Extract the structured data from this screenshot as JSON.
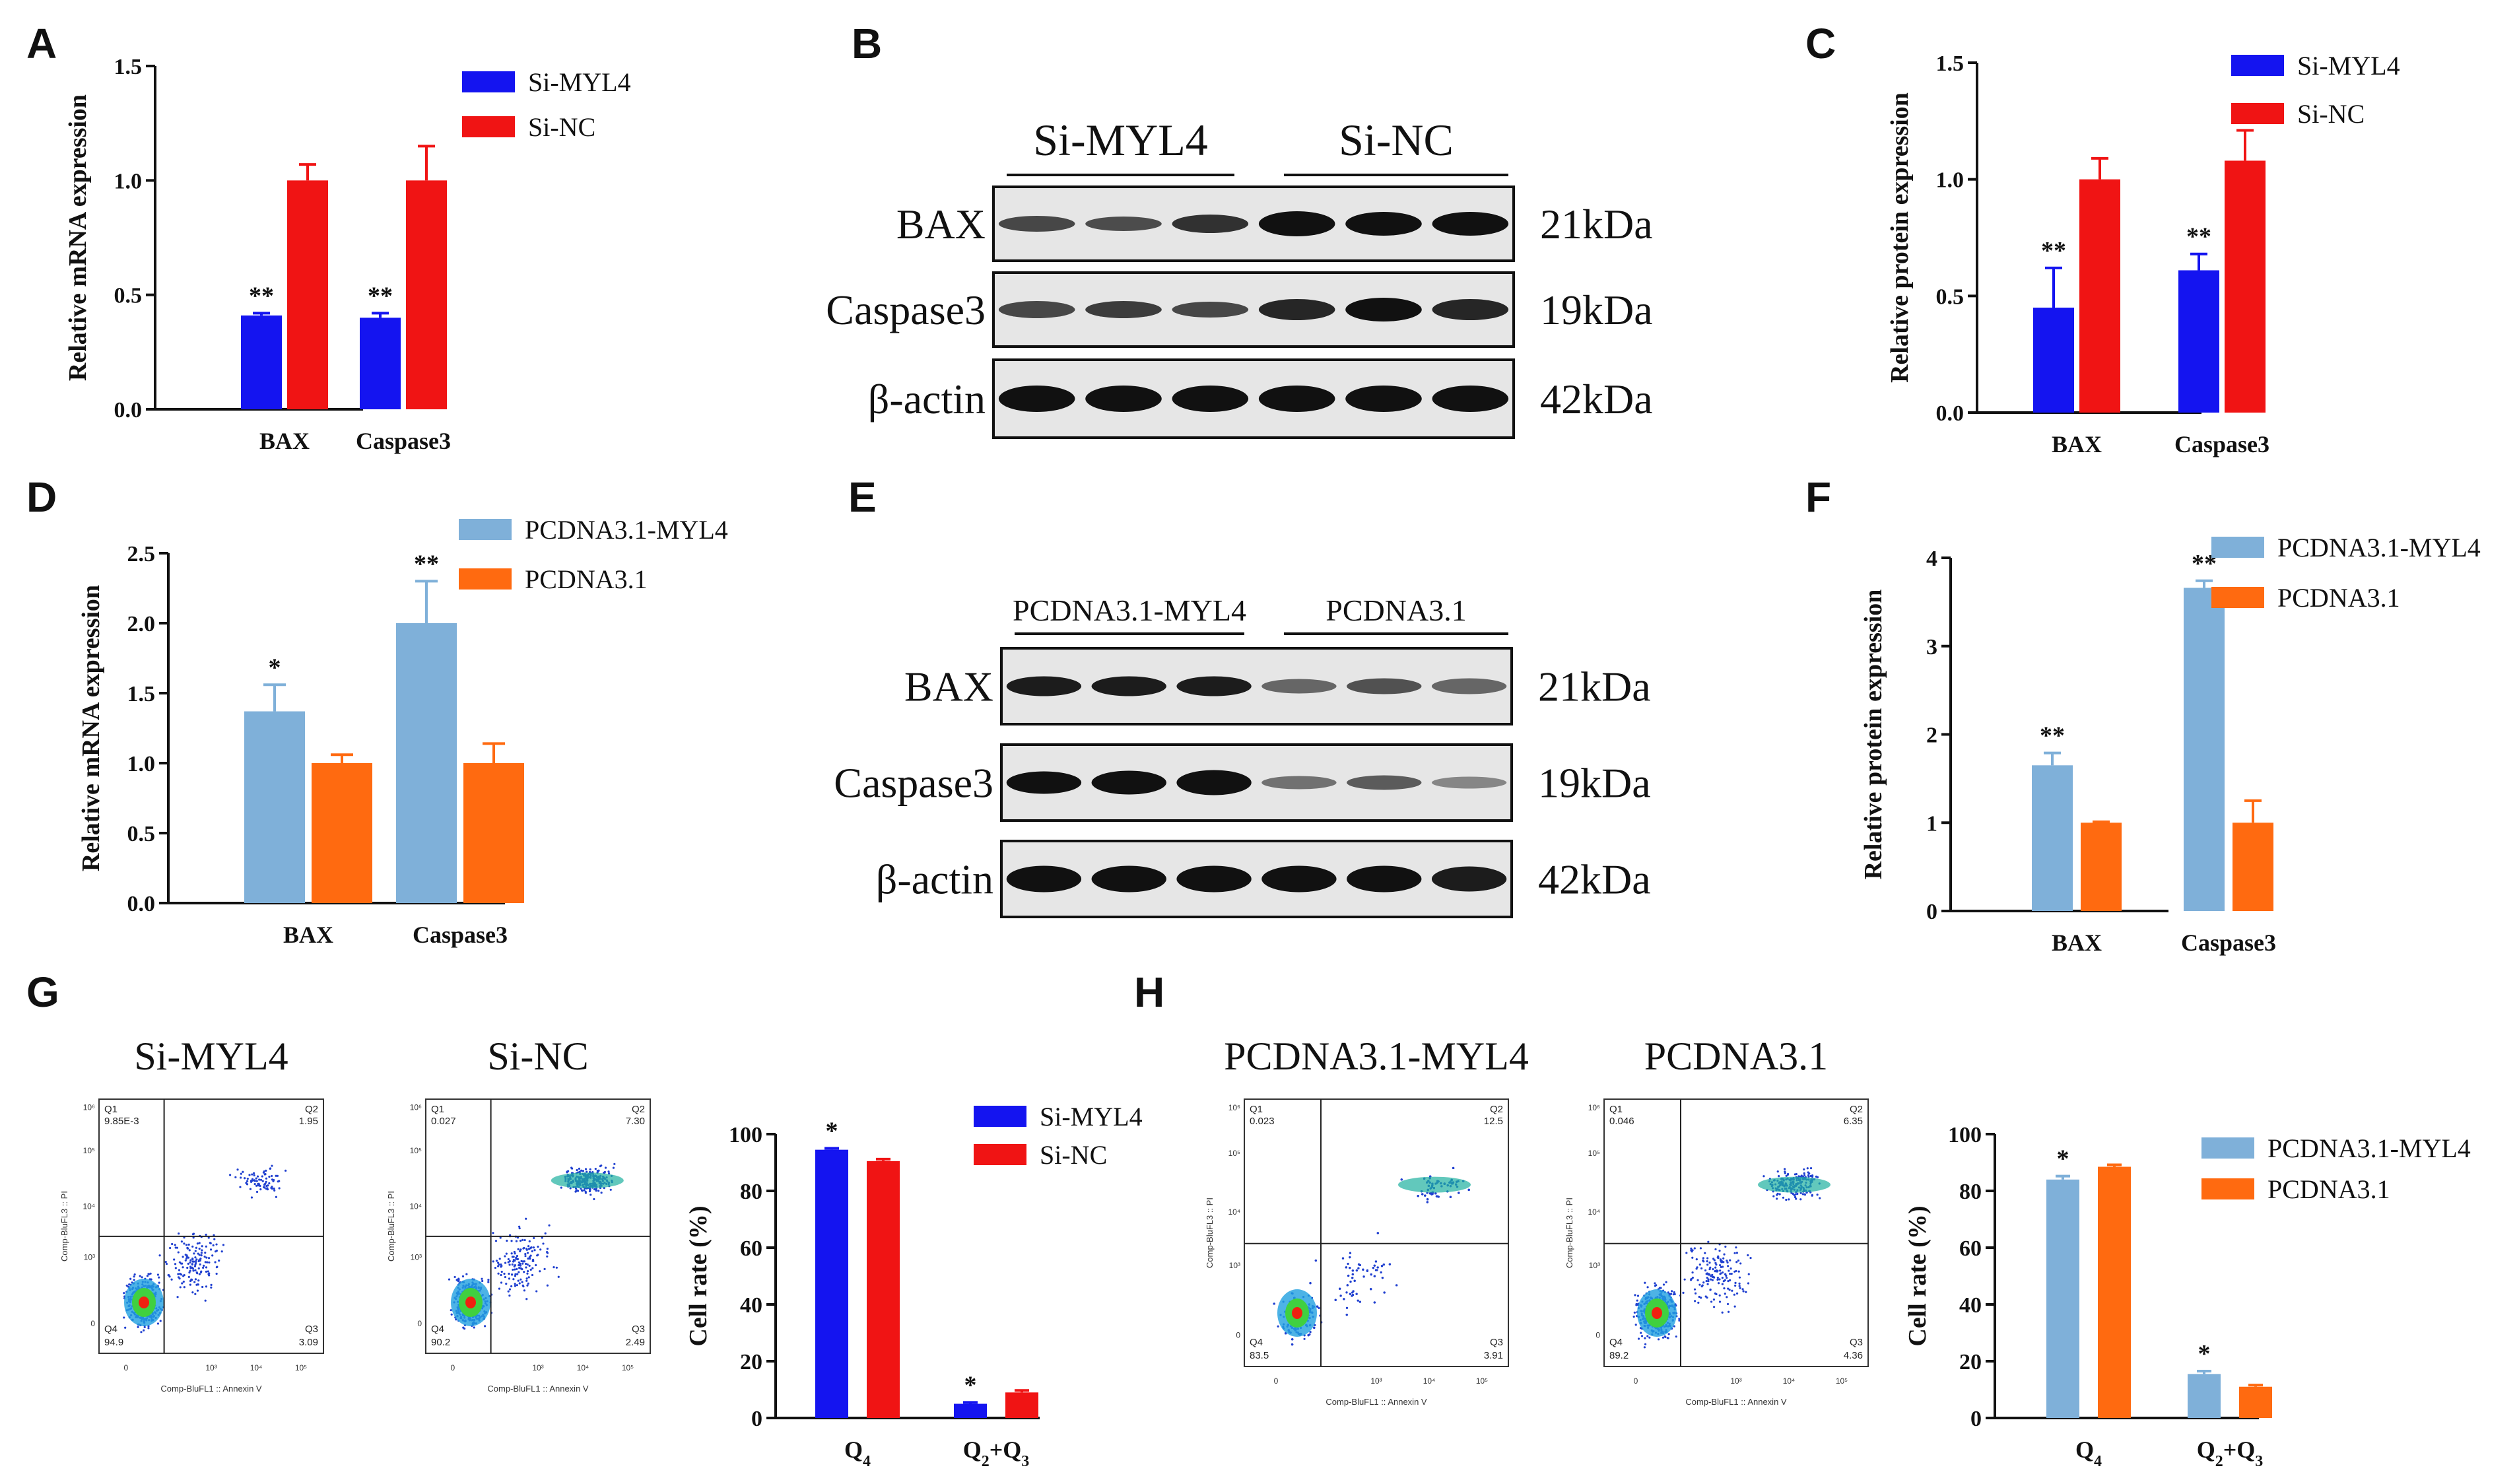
{
  "panels": {
    "A": "A",
    "B": "B",
    "C": "C",
    "D": "D",
    "E": "E",
    "F": "F",
    "G": "G",
    "H": "H"
  },
  "colors": {
    "si_myl4": "#1414f0",
    "si_nc": "#f01414",
    "pcdna_myl4": "#7fb0d9",
    "pcdna": "#ff6a10"
  },
  "chart_data": [
    {
      "id": "A",
      "type": "bar",
      "ylabel": "Relative mRNA expression",
      "categories": [
        "BAX",
        "Caspase3"
      ],
      "ylim": [
        0,
        1.5
      ],
      "yticks": [
        "0.0",
        "0.5",
        "1.0",
        "1.5"
      ],
      "series": [
        {
          "name": "Si-MYL4",
          "values": [
            0.41,
            0.4
          ],
          "errors": [
            0.01,
            0.02
          ],
          "stars": [
            "**",
            "**"
          ]
        },
        {
          "name": "Si-NC",
          "values": [
            1.0,
            1.0
          ],
          "errors": [
            0.07,
            0.15
          ],
          "stars": [
            "",
            ""
          ]
        }
      ]
    },
    {
      "id": "C",
      "type": "bar",
      "ylabel": "Relative  protein expression",
      "categories": [
        "BAX",
        "Caspase3"
      ],
      "ylim": [
        0,
        1.5
      ],
      "yticks": [
        "0.0",
        "0.5",
        "1.0",
        "1.5"
      ],
      "series": [
        {
          "name": "Si-MYL4",
          "values": [
            0.45,
            0.61
          ],
          "errors": [
            0.17,
            0.07
          ],
          "stars": [
            "**",
            "**"
          ]
        },
        {
          "name": "Si-NC",
          "values": [
            1.0,
            1.08
          ],
          "errors": [
            0.09,
            0.13
          ],
          "stars": [
            "",
            ""
          ]
        }
      ]
    },
    {
      "id": "D",
      "type": "bar",
      "ylabel": "Relative mRNA expression",
      "categories": [
        "BAX",
        "Caspase3"
      ],
      "ylim": [
        0,
        2.5
      ],
      "yticks": [
        "0.0",
        "0.5",
        "1.0",
        "1.5",
        "2.0",
        "2.5"
      ],
      "series": [
        {
          "name": "PCDNA3.1-MYL4",
          "values": [
            1.37,
            2.0
          ],
          "errors": [
            0.19,
            0.3
          ],
          "stars": [
            "*",
            "**"
          ]
        },
        {
          "name": "PCDNA3.1",
          "values": [
            1.0,
            1.0
          ],
          "errors": [
            0.06,
            0.14
          ],
          "stars": [
            "",
            ""
          ]
        }
      ]
    },
    {
      "id": "F",
      "type": "bar",
      "ylabel": "Relative  protein expression",
      "categories": [
        "BAX",
        "Caspase3"
      ],
      "ylim": [
        0,
        4
      ],
      "yticks": [
        "0",
        "1",
        "2",
        "3",
        "4"
      ],
      "series": [
        {
          "name": "PCDNA3.1-MYL4",
          "values": [
            1.65,
            3.66
          ],
          "errors": [
            0.14,
            0.08
          ],
          "stars": [
            "**",
            "**"
          ]
        },
        {
          "name": "PCDNA3.1",
          "values": [
            1.0,
            1.0
          ],
          "errors": [
            0.01,
            0.25
          ],
          "stars": [
            "",
            ""
          ]
        }
      ]
    },
    {
      "id": "G",
      "type": "bar",
      "ylabel": "Cell  rate (%)",
      "categories": [
        "Q4",
        "Q2+Q3"
      ],
      "ylim": [
        0,
        100
      ],
      "yticks": [
        "0",
        "20",
        "40",
        "60",
        "80",
        "100"
      ],
      "series": [
        {
          "name": "Si-MYL4",
          "values": [
            94.5,
            5.0
          ],
          "errors": [
            0.5,
            0.5
          ],
          "stars": [
            "*",
            "*"
          ]
        },
        {
          "name": "Si-NC",
          "values": [
            90.5,
            9.0
          ],
          "errors": [
            0.7,
            0.7
          ],
          "stars": [
            "",
            ""
          ]
        }
      ]
    },
    {
      "id": "H",
      "type": "bar",
      "ylabel": "Cell  rate (%)",
      "categories": [
        "Q4",
        "Q2+Q3"
      ],
      "ylim": [
        0,
        100
      ],
      "yticks": [
        "0",
        "20",
        "40",
        "60",
        "80",
        "100"
      ],
      "series": [
        {
          "name": "PCDNA3.1-MYL4",
          "values": [
            84.0,
            15.5
          ],
          "errors": [
            1.2,
            1.0
          ],
          "stars": [
            "*",
            "*"
          ]
        },
        {
          "name": "PCDNA3.1",
          "values": [
            88.5,
            11.0
          ],
          "errors": [
            0.7,
            0.6
          ],
          "stars": [
            "",
            ""
          ]
        }
      ]
    }
  ],
  "western_B": {
    "groups": [
      "Si-MYL4",
      "Si-NC"
    ],
    "rows": [
      {
        "label": "BAX",
        "kda": "21kDa"
      },
      {
        "label": "Caspase3",
        "kda": "19kDa"
      },
      {
        "label": "β-actin",
        "kda": "42kDa"
      }
    ]
  },
  "western_E": {
    "groups": [
      "PCDNA3.1-MYL4",
      "PCDNA3.1"
    ],
    "rows": [
      {
        "label": "BAX",
        "kda": "21kDa"
      },
      {
        "label": "Caspase3",
        "kda": "19kDa"
      },
      {
        "label": "β-actin",
        "kda": "42kDa"
      }
    ]
  },
  "flow_G": [
    {
      "title": "Si-MYL4",
      "q1": "9.85E-3",
      "q2": "1.95",
      "q3": "3.09",
      "q4": "94.9"
    },
    {
      "title": "Si-NC",
      "q1": "0.027",
      "q2": "7.30",
      "q3": "2.49",
      "q4": "90.2"
    }
  ],
  "flow_H": [
    {
      "title": "PCDNA3.1-MYL4",
      "q1": "0.023",
      "q2": "12.5",
      "q3": "3.91",
      "q4": "83.5"
    },
    {
      "title": "PCDNA3.1",
      "q1": "0.046",
      "q2": "6.35",
      "q3": "4.36",
      "q4": "89.2"
    }
  ],
  "flow_axes": {
    "x": "Comp-BluFL1 :: Annexin V",
    "y": "Comp-BluFL3 :: PI",
    "q_labels": [
      "Q1",
      "Q2",
      "Q3",
      "Q4"
    ]
  }
}
